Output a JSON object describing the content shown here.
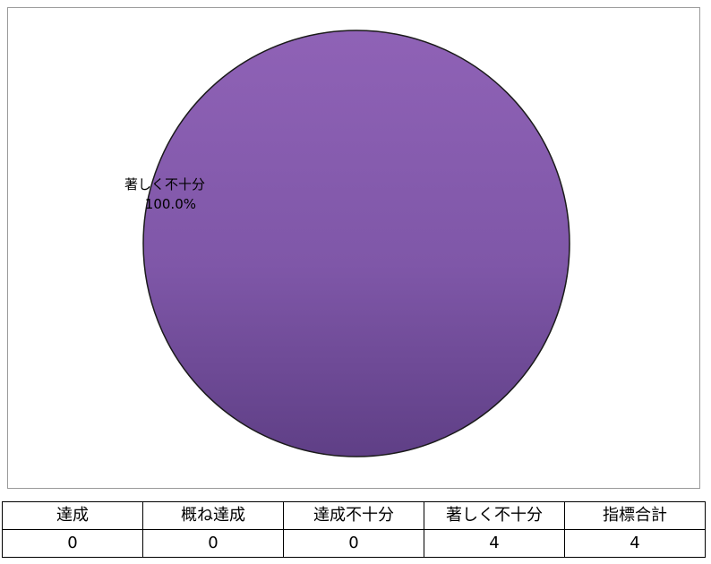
{
  "chart_data": {
    "type": "pie",
    "title": "",
    "slices": [
      {
        "label": "達成",
        "value": 0,
        "percent": 0.0
      },
      {
        "label": "概ね達成",
        "value": 0,
        "percent": 0.0
      },
      {
        "label": "達成不十分",
        "value": 0,
        "percent": 0.0
      },
      {
        "label": "著しく不十分",
        "value": 4,
        "percent": 100.0
      }
    ],
    "data_labels": [
      {
        "name": "著しく不十分",
        "value": "100.0%"
      }
    ],
    "colors": {
      "著しく不十分": "#8b5fb0"
    },
    "legend": "none"
  },
  "summary_table": {
    "headers": [
      "達成",
      "概ね達成",
      "達成不十分",
      "著しく不十分",
      "指標合計"
    ],
    "values": [
      "0",
      "0",
      "0",
      "4",
      "4"
    ]
  }
}
